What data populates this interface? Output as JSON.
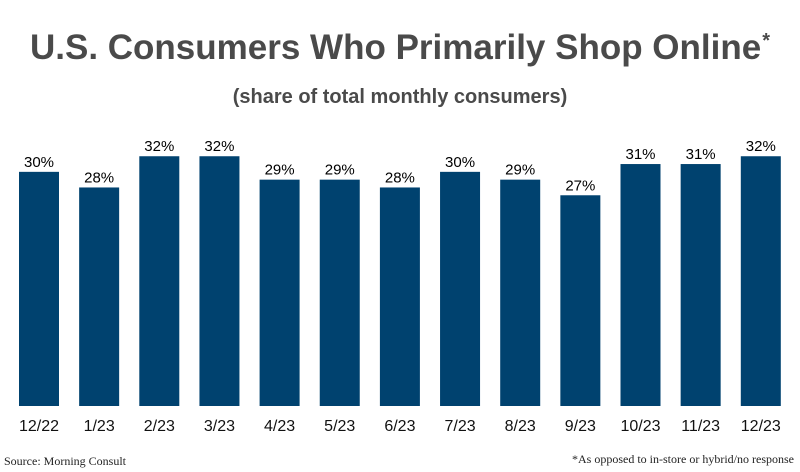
{
  "header": {
    "title": "U.S. Consumers Who Primarily Shop Online",
    "title_marker": "*",
    "subtitle": "(share of total monthly consumers)"
  },
  "footer": {
    "source": "Source: Morning Consult",
    "footnote": "*As opposed to in-store or hybrid/no response"
  },
  "colors": {
    "bar": "#00426f",
    "text": "#4a4a4a"
  },
  "chart_data": {
    "type": "bar",
    "title": "U.S. Consumers Who Primarily Shop Online*",
    "subtitle": "(share of total monthly consumers)",
    "categories": [
      "12/22",
      "1/23",
      "2/23",
      "3/23",
      "4/23",
      "5/23",
      "6/23",
      "7/23",
      "8/23",
      "9/23",
      "10/23",
      "11/23",
      "12/23"
    ],
    "values": [
      30,
      28,
      32,
      32,
      29,
      29,
      28,
      30,
      29,
      27,
      31,
      31,
      32
    ],
    "value_labels": [
      "30%",
      "28%",
      "32%",
      "32%",
      "29%",
      "29%",
      "28%",
      "30%",
      "29%",
      "27%",
      "31%",
      "31%",
      "32%"
    ],
    "unit": "%",
    "xlabel": "",
    "ylabel": "",
    "grid": false,
    "legend": "none"
  }
}
